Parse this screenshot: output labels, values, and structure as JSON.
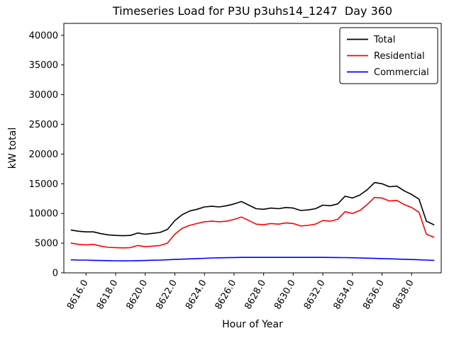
{
  "title": "Timeseries Load for P3U p3uhs14_1247  Day 360",
  "chart_data": {
    "type": "line",
    "title": "Timeseries Load for P3U p3uhs14_1247  Day 360",
    "xlabel": "Hour of Year",
    "ylabel": "kW total",
    "xlim": [
      8614.5,
      8640.0
    ],
    "ylim": [
      0,
      42000
    ],
    "xticks": [
      8616,
      8618,
      8620,
      8622,
      8624,
      8626,
      8628,
      8630,
      8632,
      8634,
      8636,
      8638
    ],
    "xtick_labels": [
      "8616.0",
      "8618.0",
      "8620.0",
      "8622.0",
      "8624.0",
      "8626.0",
      "8628.0",
      "8630.0",
      "8632.0",
      "8634.0",
      "8636.0",
      "8638.0"
    ],
    "yticks": [
      0,
      5000,
      10000,
      15000,
      20000,
      25000,
      30000,
      35000,
      40000
    ],
    "ytick_labels": [
      "0",
      "5000",
      "10000",
      "15000",
      "20000",
      "25000",
      "30000",
      "35000",
      "40000"
    ],
    "grid": false,
    "legend_position": "upper right",
    "background_color": "#ffffff",
    "axis_color": "#000000",
    "x": [
      8615.0,
      8615.5,
      8616.0,
      8616.5,
      8617.0,
      8617.5,
      8618.0,
      8618.5,
      8619.0,
      8619.5,
      8620.0,
      8620.5,
      8621.0,
      8621.5,
      8622.0,
      8622.5,
      8623.0,
      8623.5,
      8624.0,
      8624.5,
      8625.0,
      8625.5,
      8626.0,
      8626.5,
      8627.0,
      8627.5,
      8628.0,
      8628.5,
      8629.0,
      8629.5,
      8630.0,
      8630.5,
      8631.0,
      8631.5,
      8632.0,
      8632.5,
      8633.0,
      8633.5,
      8634.0,
      8634.5,
      8635.0,
      8635.5,
      8636.0,
      8636.5,
      8637.0,
      8637.5,
      8638.0,
      8638.5,
      8639.0,
      8639.5
    ],
    "series": [
      {
        "name": "Total",
        "color": "#000000",
        "values": [
          7200,
          7000,
          6900,
          6900,
          6600,
          6400,
          6300,
          6250,
          6300,
          6700,
          6500,
          6650,
          6800,
          7300,
          8800,
          9800,
          10400,
          10700,
          11100,
          11200,
          11100,
          11300,
          11600,
          12000,
          11400,
          10800,
          10700,
          10900,
          10800,
          11000,
          10900,
          10500,
          10600,
          10800,
          11400,
          11300,
          11600,
          12900,
          12600,
          13100,
          14000,
          15200,
          15000,
          14500,
          14600,
          13800,
          13200,
          12400,
          8700,
          8100
        ]
      },
      {
        "name": "Residential",
        "color": "#ff0000",
        "values": [
          5000,
          4800,
          4700,
          4800,
          4500,
          4300,
          4250,
          4200,
          4250,
          4600,
          4400,
          4500,
          4600,
          5000,
          6500,
          7500,
          8000,
          8300,
          8600,
          8700,
          8600,
          8700,
          9000,
          9400,
          8800,
          8200,
          8100,
          8300,
          8200,
          8400,
          8300,
          7900,
          8000,
          8200,
          8800,
          8700,
          9000,
          10300,
          10000,
          10500,
          11500,
          12700,
          12600,
          12100,
          12200,
          11500,
          11000,
          10200,
          6500,
          6000
        ]
      },
      {
        "name": "Commercial",
        "color": "#0000ff",
        "values": [
          2200,
          2150,
          2150,
          2100,
          2080,
          2050,
          2030,
          2020,
          2030,
          2050,
          2080,
          2120,
          2150,
          2200,
          2250,
          2300,
          2350,
          2400,
          2450,
          2500,
          2530,
          2550,
          2580,
          2600,
          2600,
          2600,
          2600,
          2600,
          2600,
          2600,
          2600,
          2600,
          2600,
          2600,
          2600,
          2590,
          2580,
          2560,
          2540,
          2500,
          2470,
          2440,
          2400,
          2360,
          2320,
          2280,
          2240,
          2200,
          2150,
          2100
        ]
      }
    ]
  }
}
